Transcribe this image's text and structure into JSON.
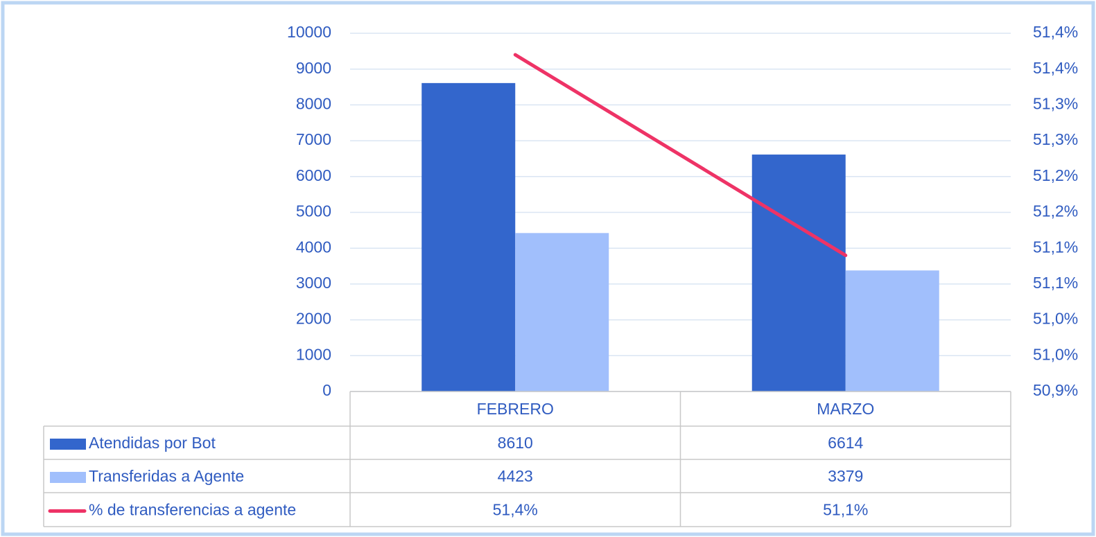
{
  "chart_data": {
    "type": "bar",
    "categories": [
      "FEBRERO",
      "MARZO"
    ],
    "series": [
      {
        "name": "Atendidas por Bot",
        "color": "#3366cc",
        "values": [
          8610,
          6614
        ]
      },
      {
        "name": "Transferidas a Agente",
        "color": "#a1bffc",
        "values": [
          4423,
          3379
        ]
      },
      {
        "name": "% de transferencias a agente",
        "type": "line",
        "axis": "y2",
        "color": "#ee3366",
        "values": [
          51.37,
          51.09
        ],
        "value_labels": [
          "51,4%",
          "51,1%"
        ]
      }
    ],
    "ylim": [
      0,
      10000
    ],
    "yticks": [
      0,
      1000,
      2000,
      3000,
      4000,
      5000,
      6000,
      7000,
      8000,
      9000,
      10000
    ],
    "y2lim": [
      50.9,
      51.4
    ],
    "y2ticks": [
      {
        "value": 50.9,
        "label": "50,9%"
      },
      {
        "value": 50.95,
        "label": "51,0%"
      },
      {
        "value": 51.0,
        "label": "51,0%"
      },
      {
        "value": 51.05,
        "label": "51,1%"
      },
      {
        "value": 51.1,
        "label": "51,1%"
      },
      {
        "value": 51.15,
        "label": "51,2%"
      },
      {
        "value": 51.2,
        "label": "51,2%"
      },
      {
        "value": 51.25,
        "label": "51,3%"
      },
      {
        "value": 51.3,
        "label": "51,3%"
      },
      {
        "value": 51.35,
        "label": "51,4%"
      },
      {
        "value": 51.4,
        "label": "51,4%"
      }
    ],
    "grid": true,
    "data_table": true
  }
}
